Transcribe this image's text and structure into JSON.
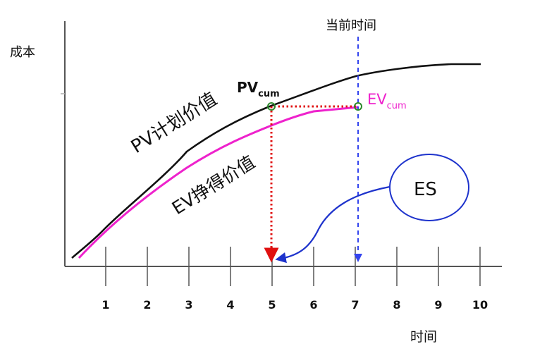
{
  "labels": {
    "y_axis": "成本",
    "x_axis": "时间",
    "current_time": "当前时间",
    "pv_curve": "PV计划价值",
    "ev_curve": "EV挣得价值",
    "es_bubble": "ES",
    "pv_cum_main": "PV",
    "pv_cum_sub": "cum",
    "ev_cum_main": "EV",
    "ev_cum_sub": "cum"
  },
  "ticks": [
    "1",
    "2",
    "3",
    "4",
    "5",
    "6",
    "7",
    "8",
    "9",
    "10"
  ],
  "colors": {
    "axis": "#555555",
    "pv_line": "#111111",
    "ev_line": "#ee22cc",
    "red_dotted": "#e01010",
    "blue_dashed": "#3344ee",
    "es_outline": "#1e33cc",
    "marker": "#2a8a2a"
  },
  "chart_data": {
    "type": "line",
    "x_ticks": [
      1,
      2,
      3,
      4,
      5,
      6,
      7,
      8,
      9,
      10
    ],
    "current_time": 7,
    "es_time": 5
  }
}
